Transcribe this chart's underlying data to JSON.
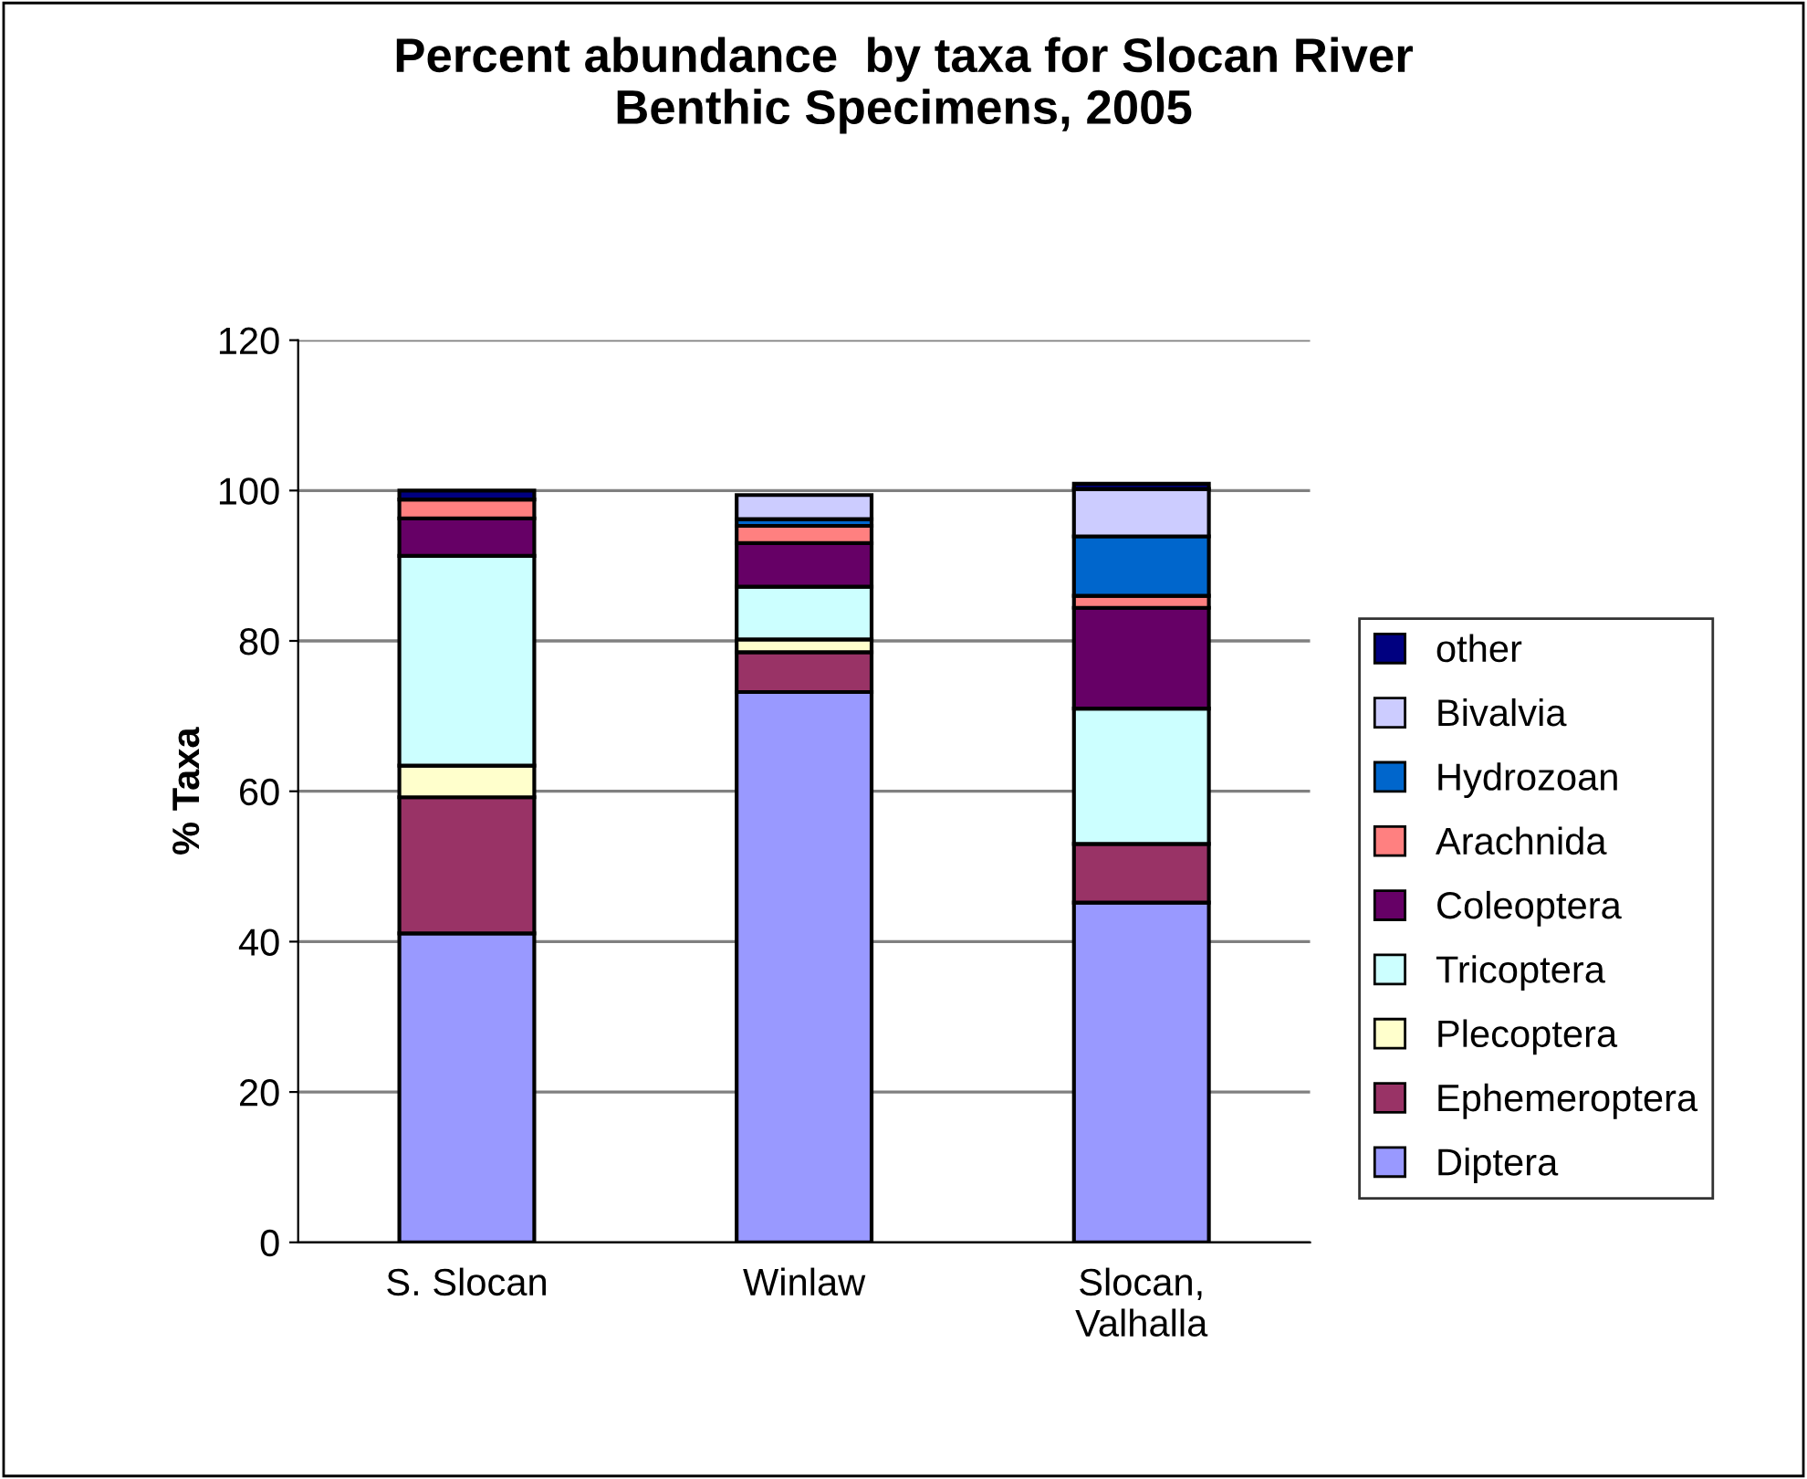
{
  "chart_data": {
    "type": "bar",
    "stacked": true,
    "title": "Percent abundance  by taxa for Slocan River\nBenthic Specimens, 2005",
    "ylabel": "% Taxa",
    "categories": [
      "S. Slocan",
      "Winlaw",
      "Slocan,\nValhalla"
    ],
    "series": [
      {
        "name": "Diptera",
        "color": "#9999ff",
        "values": [
          41.1,
          73.2,
          45.2
        ]
      },
      {
        "name": "Ephemeroptera",
        "color": "#993366",
        "values": [
          18.1,
          5.3,
          7.8
        ]
      },
      {
        "name": "Plecoptera",
        "color": "#ffffcc",
        "values": [
          4.2,
          1.7,
          null
        ]
      },
      {
        "name": "Tricoptera",
        "color": "#ccffff",
        "values": [
          27.9,
          7.0,
          18.0
        ]
      },
      {
        "name": "Coleoptera",
        "color": "#660066",
        "values": [
          5.0,
          5.8,
          13.4
        ]
      },
      {
        "name": "Arachnida",
        "color": "#ff8080",
        "values": [
          2.5,
          2.3,
          1.6
        ]
      },
      {
        "name": "Hydrozoan",
        "color": "#0066cc",
        "values": [
          0,
          0.9,
          7.9
        ]
      },
      {
        "name": "Bivalvia",
        "color": "#ccccff",
        "values": [
          0,
          3.2,
          6.3
        ]
      },
      {
        "name": "other",
        "color": "#000080",
        "values": [
          1.2,
          0,
          0.7
        ]
      }
    ],
    "ylim": [
      0,
      120
    ],
    "yticks": [
      0,
      20,
      40,
      60,
      80,
      100,
      120
    ],
    "grid": "y",
    "legend": "right"
  }
}
